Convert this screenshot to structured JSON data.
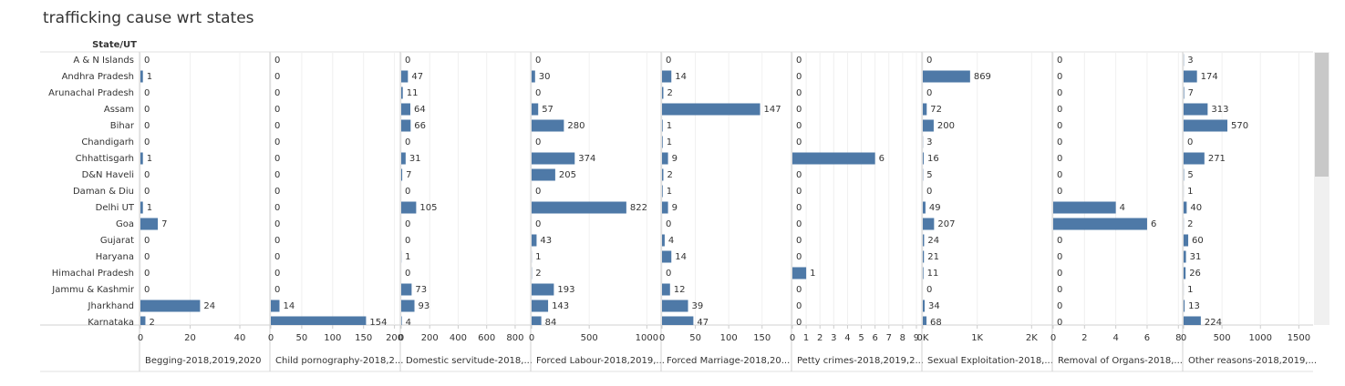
{
  "chart_data": {
    "type": "bar",
    "orientation": "horizontal",
    "title": "trafficking cause wrt states",
    "row_header": "State/UT",
    "color": "#4e79a7",
    "grid": true,
    "categories": [
      "A & N Islands",
      "Andhra Pradesh",
      "Arunachal Pradesh",
      "Assam",
      "Bihar",
      "Chandigarh",
      "Chhattisgarh",
      "D&N Haveli",
      "Daman & Diu",
      "Delhi UT",
      "Goa",
      "Gujarat",
      "Haryana",
      "Himachal Pradesh",
      "Jammu & Kashmir",
      "Jharkhand",
      "Karnataka"
    ],
    "series": [
      {
        "name": "Begging-2018,2019,2020",
        "xlim": [
          0,
          51
        ],
        "xticks": [
          0,
          20,
          40
        ],
        "values": [
          0,
          1,
          0,
          0,
          0,
          0,
          1,
          0,
          0,
          1,
          7,
          0,
          0,
          0,
          0,
          24,
          2
        ]
      },
      {
        "name": "Child pornography-2018,2...",
        "xlim": [
          0,
          205
        ],
        "xticks": [
          0,
          50,
          100,
          150,
          200
        ],
        "values": [
          0,
          0,
          0,
          0,
          0,
          0,
          0,
          0,
          0,
          0,
          0,
          0,
          0,
          0,
          0,
          14,
          154
        ]
      },
      {
        "name": "Domestic servitude-2018,...",
        "xlim": [
          0,
          890
        ],
        "xticks": [
          0,
          200,
          400,
          600,
          800
        ],
        "values": [
          0,
          47,
          11,
          64,
          66,
          0,
          31,
          7,
          0,
          105,
          0,
          0,
          1,
          0,
          73,
          93,
          4
        ]
      },
      {
        "name": "Forced Labour-2018,2019,...",
        "xlim": [
          0,
          1100
        ],
        "xticks": [
          0,
          500,
          1000
        ],
        "values": [
          0,
          30,
          0,
          57,
          280,
          0,
          374,
          205,
          0,
          822,
          0,
          43,
          1,
          2,
          193,
          143,
          84
        ]
      },
      {
        "name": "Forced Marriage-2018,20...",
        "xlim": [
          0,
          190
        ],
        "xticks": [
          0,
          50,
          100,
          150
        ],
        "values": [
          0,
          14,
          2,
          147,
          1,
          1,
          9,
          2,
          1,
          9,
          0,
          4,
          14,
          0,
          12,
          39,
          47
        ]
      },
      {
        "name": "Petty crimes-2018,2019,2...",
        "xlim": [
          0,
          9.2
        ],
        "xticks": [
          0,
          1,
          2,
          3,
          4,
          5,
          6,
          7,
          8,
          9
        ],
        "values": [
          0,
          0,
          0,
          0,
          0,
          0,
          6,
          0,
          0,
          0,
          0,
          0,
          0,
          1,
          0,
          0,
          0
        ]
      },
      {
        "name": "Sexual Exploitation-2018,...",
        "xlim": [
          0,
          2330
        ],
        "xticks": [
          {
            "value": 0,
            "label": "0K"
          },
          {
            "value": 1000,
            "label": "1K"
          },
          {
            "value": 2000,
            "label": "2K"
          }
        ],
        "values": [
          0,
          869,
          0,
          72,
          200,
          3,
          16,
          5,
          0,
          49,
          207,
          24,
          21,
          11,
          0,
          34,
          68
        ]
      },
      {
        "name": "Removal of Organs-2018,...",
        "xlim": [
          0,
          8.1
        ],
        "xticks": [
          0,
          2,
          4,
          6,
          8
        ],
        "values": [
          0,
          0,
          0,
          0,
          0,
          0,
          0,
          0,
          0,
          4,
          6,
          0,
          0,
          0,
          0,
          0,
          0
        ]
      },
      {
        "name": "Other reasons-2018,2019,...",
        "xlim": [
          0,
          1650
        ],
        "xticks": [
          0,
          500,
          1000,
          1500
        ],
        "values": [
          3,
          174,
          7,
          313,
          570,
          0,
          271,
          5,
          1,
          40,
          2,
          60,
          31,
          26,
          1,
          13,
          224
        ]
      }
    ]
  }
}
